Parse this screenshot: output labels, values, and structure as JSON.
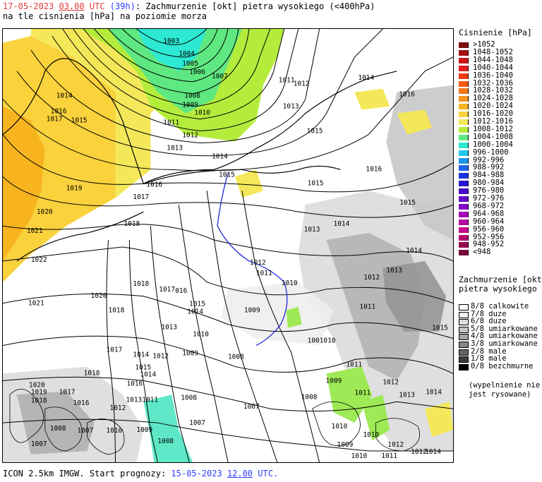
{
  "header": {
    "date": "17-05-2023",
    "hour": "03.00",
    "tz": "UTC",
    "lead": "(39h)",
    "title": ": Zachmurzenie [okt] pietra wysokiego (<400hPa)",
    "subtitle": "na tle cisnienia [hPa] na poziomie morza"
  },
  "pressure_legend": {
    "title": "Cisnienie [hPa]",
    "items": [
      {
        "label": ">1052",
        "color": "#7d0f0f"
      },
      {
        "label": "1048-1052",
        "color": "#a51414"
      },
      {
        "label": "1044-1048",
        "color": "#c81818"
      },
      {
        "label": "1040-1044",
        "color": "#e31c1c"
      },
      {
        "label": "1036-1040",
        "color": "#f03a14"
      },
      {
        "label": "1032-1036",
        "color": "#f05a14"
      },
      {
        "label": "1028-1032",
        "color": "#f2781a"
      },
      {
        "label": "1024-1028",
        "color": "#f5961e"
      },
      {
        "label": "1020-1024",
        "color": "#f7b41e"
      },
      {
        "label": "1016-1020",
        "color": "#f9d23c"
      },
      {
        "label": "1012-1016",
        "color": "#f4e85a"
      },
      {
        "label": "1008-1012",
        "color": "#b4ec3c"
      },
      {
        "label": "1004-1008",
        "color": "#5fe882"
      },
      {
        "label": "1000-1004",
        "color": "#2de8d2"
      },
      {
        "label": "996-1000",
        "color": "#1ec8f0"
      },
      {
        "label": "992-996",
        "color": "#1e96f0"
      },
      {
        "label": "988-992",
        "color": "#1e64f0"
      },
      {
        "label": "984-988",
        "color": "#1e32e6"
      },
      {
        "label": "980-984",
        "color": "#2814d2"
      },
      {
        "label": "976-980",
        "color": "#460ac8"
      },
      {
        "label": "972-976",
        "color": "#640ac8"
      },
      {
        "label": "968-972",
        "color": "#820ac8"
      },
      {
        "label": "964-968",
        "color": "#a00ab4"
      },
      {
        "label": "960-964",
        "color": "#b40aa0"
      },
      {
        "label": "956-960",
        "color": "#c80a8c"
      },
      {
        "label": "952-956",
        "color": "#b40a6e"
      },
      {
        "label": "948-952",
        "color": "#960a50"
      },
      {
        "label": "<948",
        "color": "#780a3c"
      }
    ]
  },
  "cloud_legend": {
    "title_line1": "Zachmurzenie [okt]",
    "title_line2": "pietra wysokiego",
    "items": [
      {
        "okt": "8/8",
        "label": "calkowite",
        "color": "#ffffff"
      },
      {
        "okt": "7/8",
        "label": "duze",
        "color": "#f0f0f0"
      },
      {
        "okt": "6/8",
        "label": "duze",
        "color": "#dcdcdc"
      },
      {
        "okt": "5/8",
        "label": "umiarkowane",
        "color": "#c3c3c3"
      },
      {
        "okt": "4/8",
        "label": "umiarkowane",
        "color": "#a5a5a5"
      },
      {
        "okt": "3/8",
        "label": "umiarkowane",
        "color": "#878787"
      },
      {
        "okt": "2/8",
        "label": "male",
        "color": "#646464"
      },
      {
        "okt": "1/8",
        "label": "male",
        "color": "#3c3c3c"
      },
      {
        "okt": "0/8",
        "label": "bezchmurne",
        "color": "#000000"
      }
    ],
    "note_line1": "(wypelnienie nie",
    "note_line2": "jest rysowane)"
  },
  "isobar_labels": [
    "1003",
    "1004",
    "1005",
    "1006",
    "1007",
    "1008",
    "1009",
    "1010",
    "1011",
    "1012",
    "1013",
    "1014",
    "1015",
    "1016",
    "1017",
    "1018",
    "1019",
    "1020",
    "1021",
    "1022"
  ],
  "footer": {
    "prefix": "ICON 2.5km IMGW. Start prognozy: ",
    "date": "15-05-2023",
    "hour": "12.00",
    "tz": "UTC."
  }
}
